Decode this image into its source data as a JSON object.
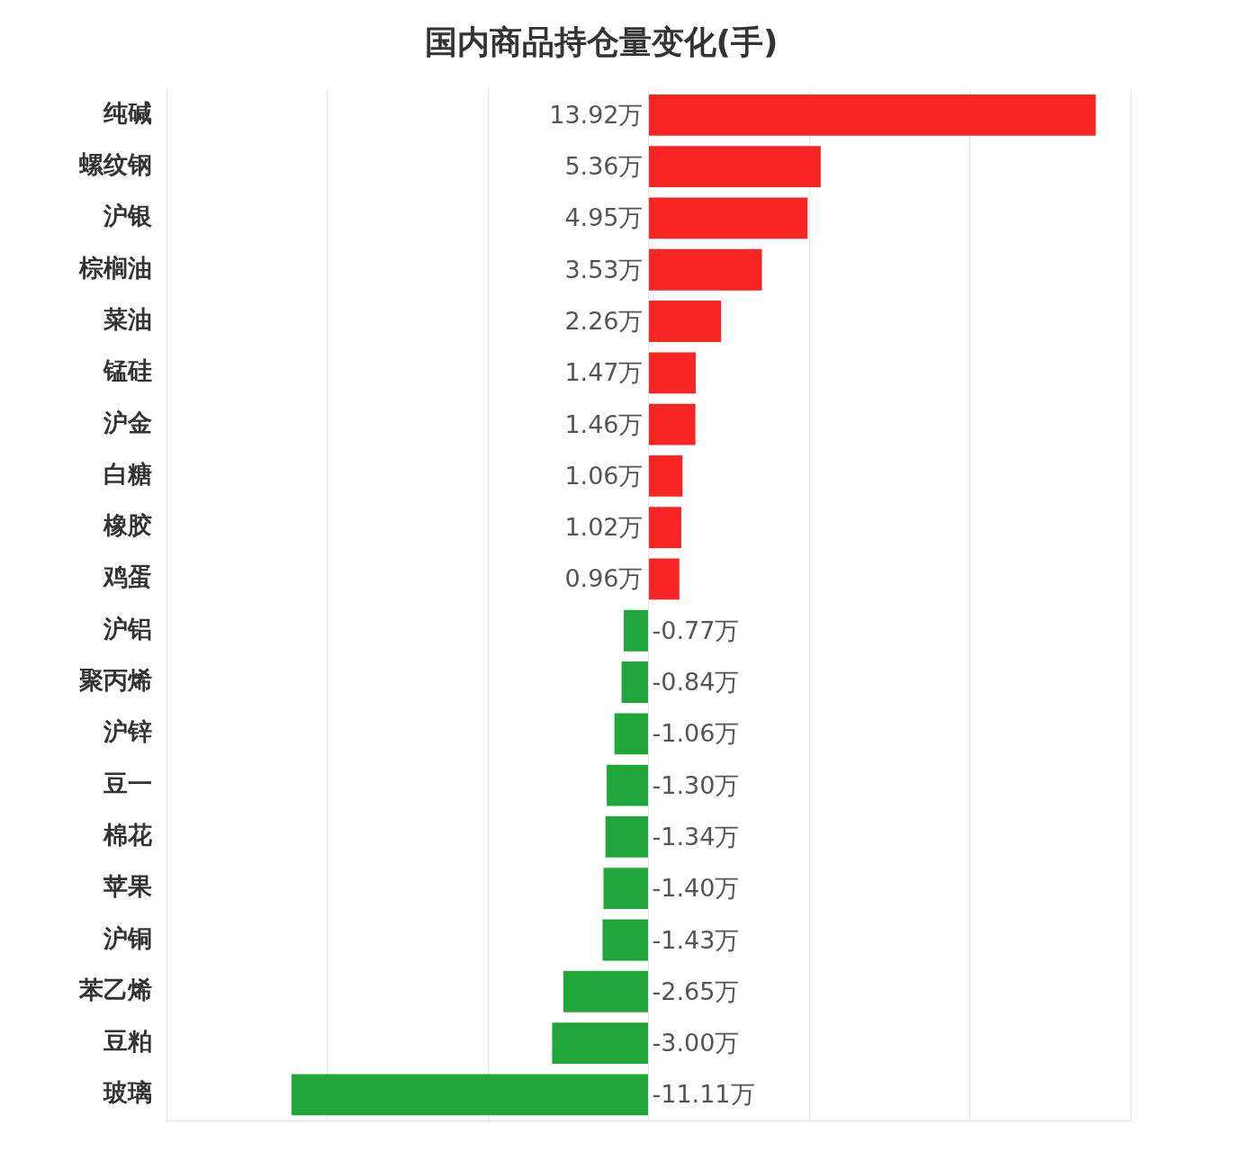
{
  "chart_data": {
    "type": "bar",
    "orientation": "horizontal",
    "title": "国内商品持仓量变化(手)",
    "categories": [
      "纯碱",
      "螺纹钢",
      "沪银",
      "棕榈油",
      "菜油",
      "锰硅",
      "沪金",
      "白糖",
      "橡胶",
      "鸡蛋",
      "沪铝",
      "聚丙烯",
      "沪锌",
      "豆一",
      "棉花",
      "苹果",
      "沪铜",
      "苯乙烯",
      "豆粕",
      "玻璃"
    ],
    "values": [
      13.92,
      5.36,
      4.95,
      3.53,
      2.26,
      1.47,
      1.46,
      1.06,
      1.02,
      0.96,
      -0.77,
      -0.84,
      -1.06,
      -1.3,
      -1.34,
      -1.4,
      -1.43,
      -2.65,
      -3.0,
      -11.11
    ],
    "colors": [
      "#f92424",
      "#f92424",
      "#f92424",
      "#f92424",
      "#f92424",
      "#f92424",
      "#f92424",
      "#f92424",
      "#f92424",
      "#f92424",
      "#21a63b",
      "#21a63b",
      "#21a63b",
      "#21a63b",
      "#21a63b",
      "#21a63b",
      "#21a63b",
      "#21a63b",
      "#21a63b",
      "#21a63b"
    ],
    "value_labels": [
      "13.92万",
      "5.36万",
      "4.95万",
      "3.53万",
      "2.26万",
      "1.47万",
      "1.46万",
      "1.06万",
      "1.02万",
      "0.96万",
      "-0.77万",
      "-0.84万",
      "-1.06万",
      "-1.30万",
      "-1.34万",
      "-1.40万",
      "-1.43万",
      "-2.65万",
      "-3.00万",
      "-11.11万"
    ],
    "xlim": [
      -15,
      15
    ],
    "xticks": [
      {
        "value": -15,
        "label": null
      },
      {
        "value": -10,
        "label": null
      },
      {
        "value": -5,
        "label": null
      },
      {
        "value": 0,
        "label": null
      },
      {
        "value": 5,
        "label": null
      },
      {
        "value": 10,
        "label": null
      },
      {
        "value": 15,
        "label": null
      }
    ],
    "grid": "x",
    "tick_labels": "y",
    "legend": false
  }
}
